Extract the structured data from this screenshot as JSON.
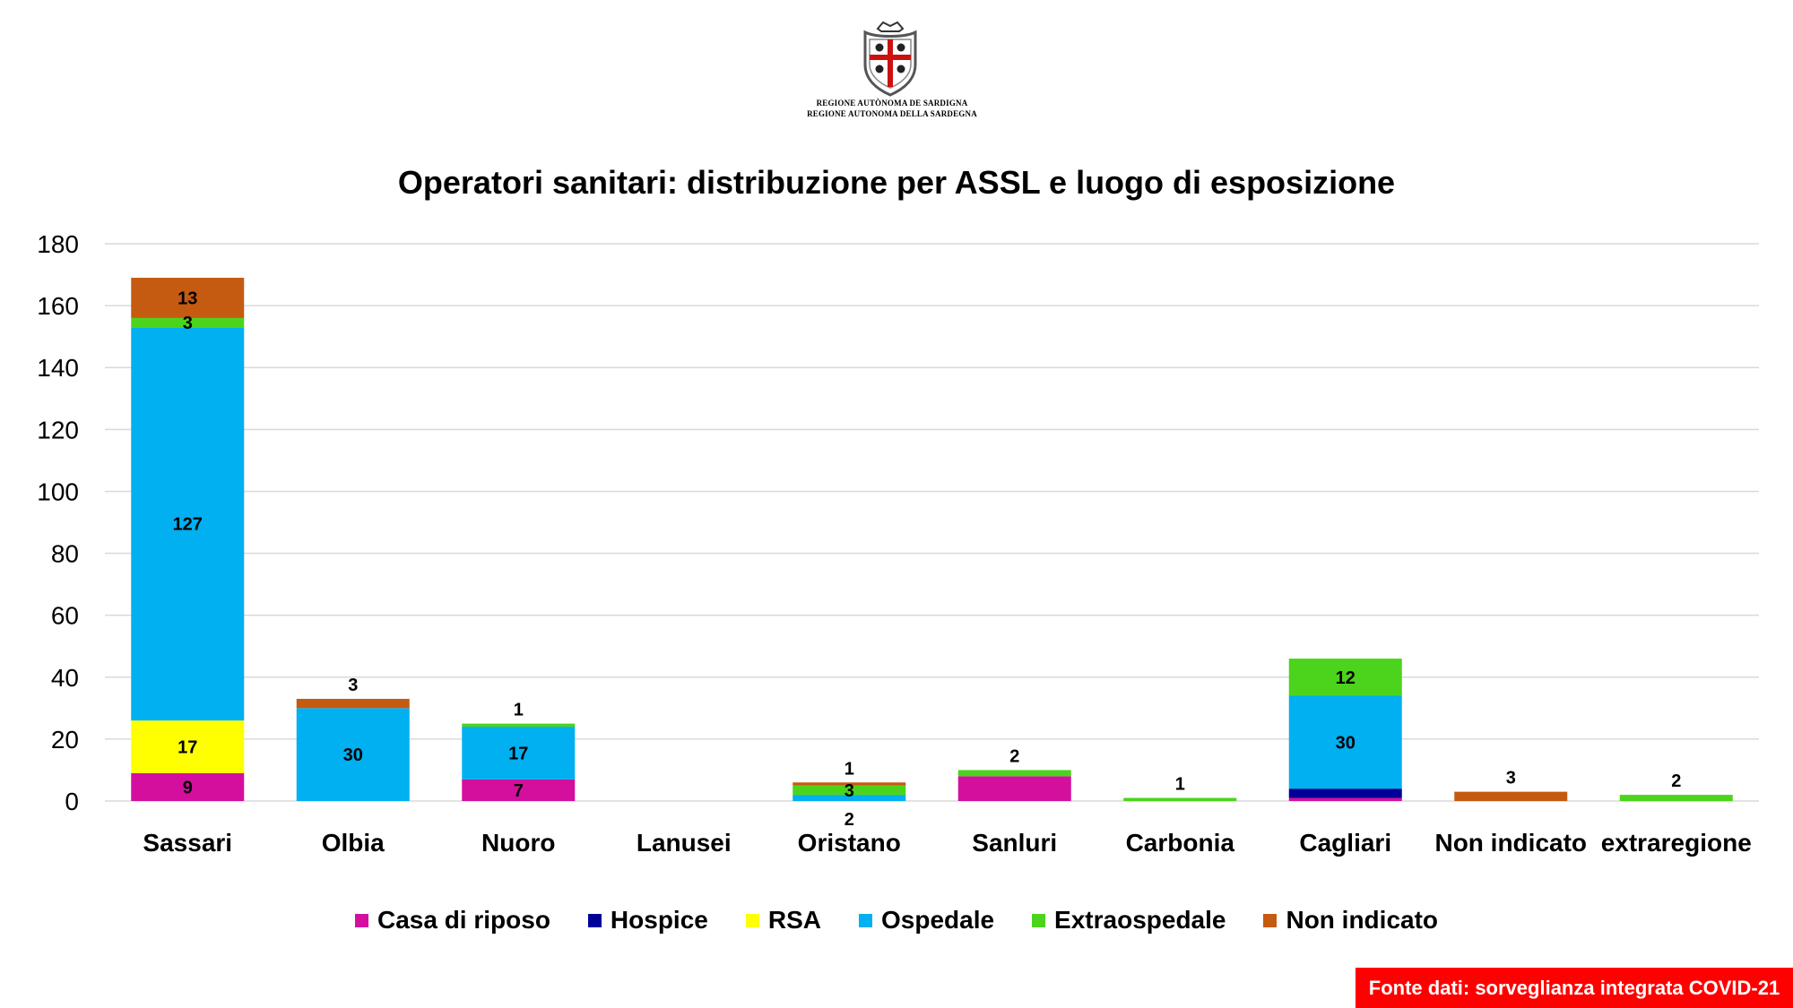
{
  "header": {
    "logo_icon": "sardinia-coat-of-arms-icon",
    "logo_line_1": "REGIONE AUTÒNOMA DE SARDIGNA",
    "logo_line_2": "REGIONE AUTONOMA DELLA SARDEGNA"
  },
  "chart_data": {
    "type": "bar",
    "stacked": true,
    "title": "Operatori sanitari: distribuzione per ASSL e luogo di esposizione",
    "xlabel": "",
    "ylabel": "",
    "ylim": [
      0,
      180
    ],
    "yticks": [
      0,
      20,
      40,
      60,
      80,
      100,
      120,
      140,
      160,
      180
    ],
    "grid": true,
    "legend_position": "bottom",
    "categories": [
      "Sassari",
      "Olbia",
      "Nuoro",
      "Lanusei",
      "Oristano",
      "Sanluri",
      "Carbonia",
      "Cagliari",
      "Non indicato",
      "extraregione"
    ],
    "series": [
      {
        "name": "Casa di riposo",
        "color": "#d40f9e",
        "values": [
          9,
          0,
          7,
          0,
          0,
          8,
          0,
          1,
          0,
          0
        ]
      },
      {
        "name": "Hospice",
        "color": "#000099",
        "values": [
          0,
          0,
          0,
          0,
          0,
          0,
          0,
          3,
          0,
          0
        ]
      },
      {
        "name": "RSA",
        "color": "#ffff00",
        "values": [
          17,
          0,
          0,
          0,
          0,
          0,
          0,
          0,
          0,
          0
        ]
      },
      {
        "name": "Ospedale",
        "color": "#00b0f0",
        "values": [
          127,
          30,
          17,
          0,
          2,
          0,
          0,
          30,
          0,
          0
        ]
      },
      {
        "name": "Extraospedale",
        "color": "#4cd41c",
        "values": [
          3,
          0,
          1,
          0,
          3,
          2,
          1,
          12,
          0,
          2
        ]
      },
      {
        "name": "Non indicato",
        "color": "#c55a11",
        "values": [
          13,
          3,
          0,
          0,
          1,
          0,
          0,
          0,
          3,
          0
        ]
      }
    ],
    "data_labels": [
      {
        "category": "Sassari",
        "series": "Casa di riposo",
        "text": "9"
      },
      {
        "category": "Sassari",
        "series": "RSA",
        "text": "17"
      },
      {
        "category": "Sassari",
        "series": "Ospedale",
        "text": "127"
      },
      {
        "category": "Sassari",
        "series": "Extraospedale",
        "text": "3"
      },
      {
        "category": "Sassari",
        "series": "Non indicato",
        "text": "13"
      },
      {
        "category": "Olbia",
        "series": "Ospedale",
        "text": "30"
      },
      {
        "category": "Olbia",
        "series": "Non indicato",
        "text": "3",
        "placement": "above"
      },
      {
        "category": "Nuoro",
        "series": "Casa di riposo",
        "text": "7"
      },
      {
        "category": "Nuoro",
        "series": "Ospedale",
        "text": "17"
      },
      {
        "category": "Nuoro",
        "series": "Extraospedale",
        "text": "1",
        "placement": "above"
      },
      {
        "category": "Oristano",
        "series": "Ospedale",
        "text": "2",
        "placement": "below"
      },
      {
        "category": "Oristano",
        "series": "Extraospedale",
        "text": "3"
      },
      {
        "category": "Oristano",
        "series": "Non indicato",
        "text": "1",
        "placement": "above"
      },
      {
        "category": "Sanluri",
        "series": "Extraospedale",
        "text": "2",
        "placement": "above"
      },
      {
        "category": "Carbonia",
        "series": "Extraospedale",
        "text": "1",
        "placement": "above"
      },
      {
        "category": "Cagliari",
        "series": "Ospedale",
        "text": "30"
      },
      {
        "category": "Cagliari",
        "series": "Extraospedale",
        "text": "12"
      },
      {
        "category": "Non indicato",
        "series": "Non indicato",
        "text": "3",
        "placement": "above"
      },
      {
        "category": "extraregione",
        "series": "Extraospedale",
        "text": "2",
        "placement": "above"
      }
    ]
  },
  "source": {
    "text": "Fonte dati: sorveglianza integrata COVID-21",
    "background_color": "#ff0000"
  }
}
